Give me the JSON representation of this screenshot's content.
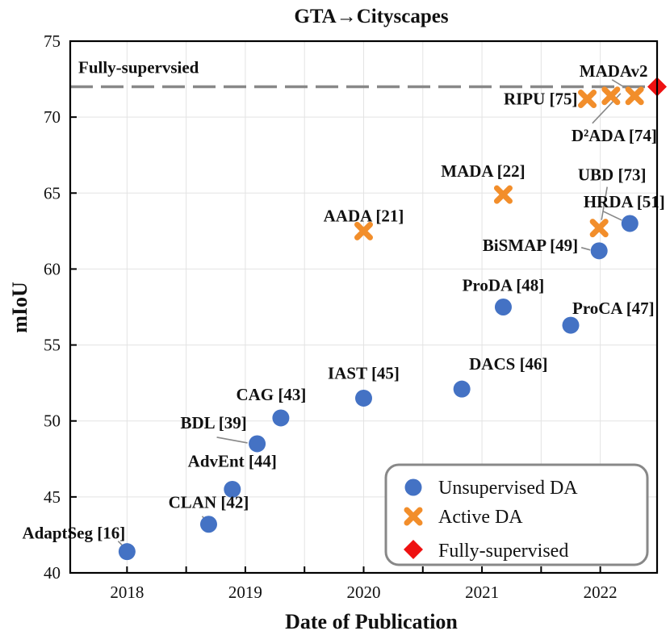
{
  "chart_data": {
    "type": "scatter",
    "title": "GTA→Cityscapes",
    "xlabel": "Date of Publication",
    "ylabel": "mIoU",
    "xlim": [
      2017.52,
      2022.48
    ],
    "ylim": [
      40,
      75
    ],
    "xticks": [
      2018,
      2019,
      2020,
      2021,
      2022
    ],
    "xtick_labels": [
      "2018",
      "2019",
      "2020",
      "2021",
      "2022"
    ],
    "yticks": [
      40,
      45,
      50,
      55,
      60,
      65,
      70,
      75
    ],
    "ytick_labels": [
      "40",
      "45",
      "50",
      "55",
      "60",
      "65",
      "70",
      "75"
    ],
    "grid": true,
    "reference_line": {
      "label": "Fully-supervsied",
      "y": 72,
      "style": "dashed",
      "color": "#888888"
    },
    "legend": {
      "position": "bottom-right",
      "entries": [
        {
          "name": "Unsupervised DA",
          "marker": "circle",
          "color": "#4472C4"
        },
        {
          "name": "Active DA",
          "marker": "x",
          "color": "#F28E2B"
        },
        {
          "name": "Fully-supervised",
          "marker": "diamond",
          "color": "#EE1111"
        }
      ]
    },
    "series": [
      {
        "name": "Unsupervised DA",
        "marker": "circle",
        "color": "#4472C4",
        "points": [
          {
            "label": "AdaptSeg [16]",
            "x": 2018.0,
            "y": 41.4
          },
          {
            "label": "CLAN [42]",
            "x": 2018.69,
            "y": 43.2
          },
          {
            "label": "AdvEnt [44]",
            "x": 2018.89,
            "y": 45.5
          },
          {
            "label": "BDL [39]",
            "x": 2019.1,
            "y": 48.5
          },
          {
            "label": "CAG [43]",
            "x": 2019.3,
            "y": 50.2
          },
          {
            "label": "IAST [45]",
            "x": 2020.0,
            "y": 51.5
          },
          {
            "label": "DACS [46]",
            "x": 2020.83,
            "y": 52.1
          },
          {
            "label": "ProDA [48]",
            "x": 2021.18,
            "y": 57.5
          },
          {
            "label": "ProCA [47]",
            "x": 2021.75,
            "y": 56.3
          },
          {
            "label": "BiSMAP [49]",
            "x": 2021.99,
            "y": 61.2
          },
          {
            "label": "HRDA [51]",
            "x": 2022.25,
            "y": 63.0
          }
        ]
      },
      {
        "name": "Active DA",
        "marker": "x",
        "color": "#F28E2B",
        "points": [
          {
            "label": "AADA [21]",
            "x": 2020.0,
            "y": 62.5
          },
          {
            "label": "MADA [22]",
            "x": 2021.18,
            "y": 64.9
          },
          {
            "label": "UBD [73]",
            "x": 2021.99,
            "y": 62.7
          },
          {
            "label": "RIPU [75]",
            "x": 2021.89,
            "y": 71.2
          },
          {
            "label": "D²ADA [74]",
            "x": 2022.09,
            "y": 71.4
          },
          {
            "label": "MADAv2",
            "x": 2022.29,
            "y": 71.4
          }
        ]
      },
      {
        "name": "Fully-supervised",
        "marker": "diamond",
        "color": "#EE1111",
        "points": [
          {
            "label": "",
            "x": 2022.48,
            "y": 72.0
          }
        ]
      }
    ]
  }
}
